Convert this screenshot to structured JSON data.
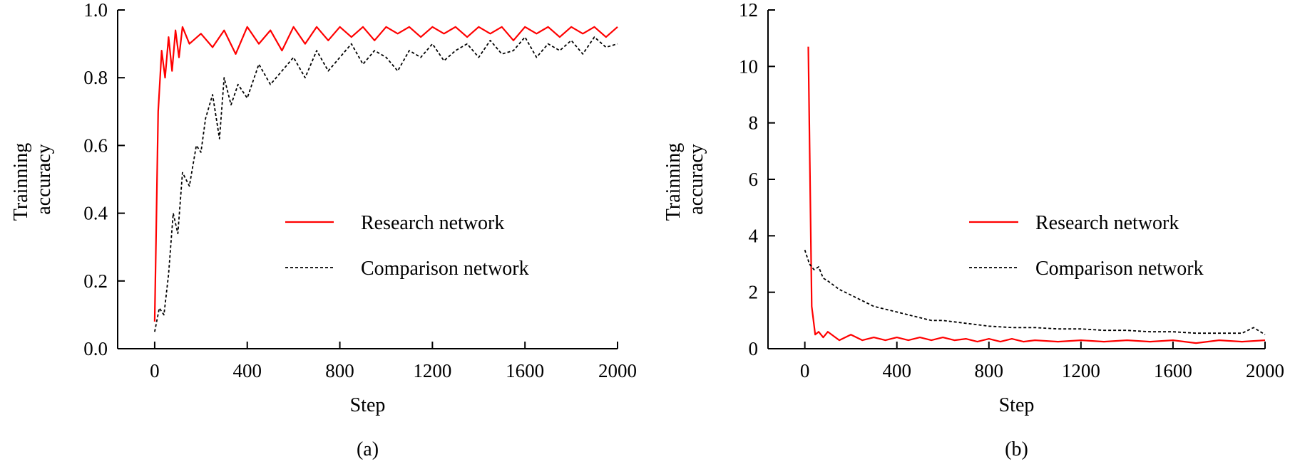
{
  "chart_data": [
    {
      "type": "line",
      "panel_label": "(a)",
      "xlabel": "Step",
      "ylabel_lines": [
        "Trainning",
        "accuracy"
      ],
      "xlim": [
        -160,
        2000
      ],
      "ylim": [
        0,
        1.0
      ],
      "xticks": [
        0,
        400,
        800,
        1200,
        1600,
        2000
      ],
      "yticks": [
        0.0,
        0.2,
        0.4,
        0.6,
        0.8,
        1.0
      ],
      "xtick_labels": [
        "0",
        "400",
        "800",
        "1200",
        "1600",
        "2000"
      ],
      "ytick_labels": [
        "0.0",
        "0.2",
        "0.4",
        "0.6",
        "0.8",
        "1.0"
      ],
      "grid": false,
      "legend_position": "center-right",
      "series": [
        {
          "name": "Research network",
          "color": "#ff0000",
          "style": "solid",
          "x": [
            0,
            15,
            30,
            45,
            60,
            75,
            90,
            105,
            120,
            150,
            200,
            250,
            300,
            350,
            400,
            450,
            500,
            550,
            600,
            650,
            700,
            750,
            800,
            850,
            900,
            950,
            1000,
            1050,
            1100,
            1150,
            1200,
            1250,
            1300,
            1350,
            1400,
            1450,
            1500,
            1550,
            1600,
            1650,
            1700,
            1750,
            1800,
            1850,
            1900,
            1950,
            2000
          ],
          "y": [
            0.08,
            0.7,
            0.88,
            0.8,
            0.92,
            0.82,
            0.94,
            0.86,
            0.95,
            0.9,
            0.93,
            0.89,
            0.94,
            0.87,
            0.95,
            0.9,
            0.94,
            0.88,
            0.95,
            0.9,
            0.95,
            0.91,
            0.95,
            0.92,
            0.95,
            0.91,
            0.95,
            0.93,
            0.95,
            0.92,
            0.95,
            0.93,
            0.95,
            0.92,
            0.95,
            0.93,
            0.95,
            0.91,
            0.95,
            0.93,
            0.95,
            0.92,
            0.95,
            0.93,
            0.95,
            0.92,
            0.95
          ]
        },
        {
          "name": "Comparison network",
          "color": "#000000",
          "style": "dashed",
          "x": [
            0,
            20,
            40,
            60,
            80,
            100,
            120,
            150,
            180,
            200,
            220,
            250,
            280,
            300,
            330,
            360,
            400,
            450,
            500,
            550,
            600,
            650,
            700,
            750,
            800,
            850,
            900,
            950,
            1000,
            1050,
            1100,
            1150,
            1200,
            1250,
            1300,
            1350,
            1400,
            1450,
            1500,
            1550,
            1600,
            1650,
            1700,
            1750,
            1800,
            1850,
            1900,
            1950,
            2000
          ],
          "y": [
            0.05,
            0.12,
            0.1,
            0.22,
            0.4,
            0.34,
            0.52,
            0.48,
            0.6,
            0.58,
            0.68,
            0.75,
            0.62,
            0.8,
            0.72,
            0.78,
            0.74,
            0.84,
            0.78,
            0.82,
            0.86,
            0.8,
            0.88,
            0.82,
            0.86,
            0.9,
            0.84,
            0.88,
            0.86,
            0.82,
            0.88,
            0.86,
            0.9,
            0.85,
            0.88,
            0.9,
            0.86,
            0.91,
            0.87,
            0.88,
            0.92,
            0.86,
            0.9,
            0.88,
            0.91,
            0.87,
            0.92,
            0.89,
            0.9
          ]
        }
      ]
    },
    {
      "type": "line",
      "panel_label": "(b)",
      "xlabel": "Step",
      "ylabel_lines": [
        "Trainning",
        "accuracy"
      ],
      "xlim": [
        -160,
        2000
      ],
      "ylim": [
        0,
        12
      ],
      "xticks": [
        0,
        400,
        800,
        1200,
        1600,
        2000
      ],
      "yticks": [
        0,
        2,
        4,
        6,
        8,
        10,
        12
      ],
      "xtick_labels": [
        "0",
        "400",
        "800",
        "1200",
        "1600",
        "2000"
      ],
      "ytick_labels": [
        "0",
        "2",
        "4",
        "6",
        "8",
        "10",
        "12"
      ],
      "grid": false,
      "legend_position": "center-right",
      "series": [
        {
          "name": "Research network",
          "color": "#ff0000",
          "style": "solid",
          "x": [
            15,
            30,
            45,
            60,
            80,
            100,
            150,
            200,
            250,
            300,
            350,
            400,
            450,
            500,
            550,
            600,
            650,
            700,
            750,
            800,
            850,
            900,
            950,
            1000,
            1100,
            1200,
            1300,
            1400,
            1500,
            1600,
            1700,
            1800,
            1900,
            2000
          ],
          "y": [
            10.7,
            1.5,
            0.5,
            0.6,
            0.4,
            0.6,
            0.3,
            0.5,
            0.3,
            0.4,
            0.3,
            0.4,
            0.3,
            0.4,
            0.3,
            0.4,
            0.3,
            0.35,
            0.25,
            0.35,
            0.25,
            0.35,
            0.25,
            0.3,
            0.25,
            0.3,
            0.25,
            0.3,
            0.25,
            0.3,
            0.2,
            0.3,
            0.25,
            0.3
          ]
        },
        {
          "name": "Comparison network",
          "color": "#000000",
          "style": "dashed",
          "x": [
            0,
            20,
            40,
            60,
            80,
            100,
            150,
            200,
            250,
            300,
            350,
            400,
            450,
            500,
            550,
            600,
            650,
            700,
            750,
            800,
            900,
            1000,
            1100,
            1200,
            1300,
            1400,
            1500,
            1600,
            1700,
            1800,
            1900,
            1950,
            2000
          ],
          "y": [
            3.5,
            3.0,
            2.8,
            2.9,
            2.5,
            2.4,
            2.1,
            1.9,
            1.7,
            1.5,
            1.4,
            1.3,
            1.2,
            1.1,
            1.0,
            1.0,
            0.95,
            0.9,
            0.85,
            0.8,
            0.75,
            0.75,
            0.7,
            0.7,
            0.65,
            0.65,
            0.6,
            0.6,
            0.55,
            0.55,
            0.55,
            0.75,
            0.5
          ]
        }
      ]
    }
  ]
}
